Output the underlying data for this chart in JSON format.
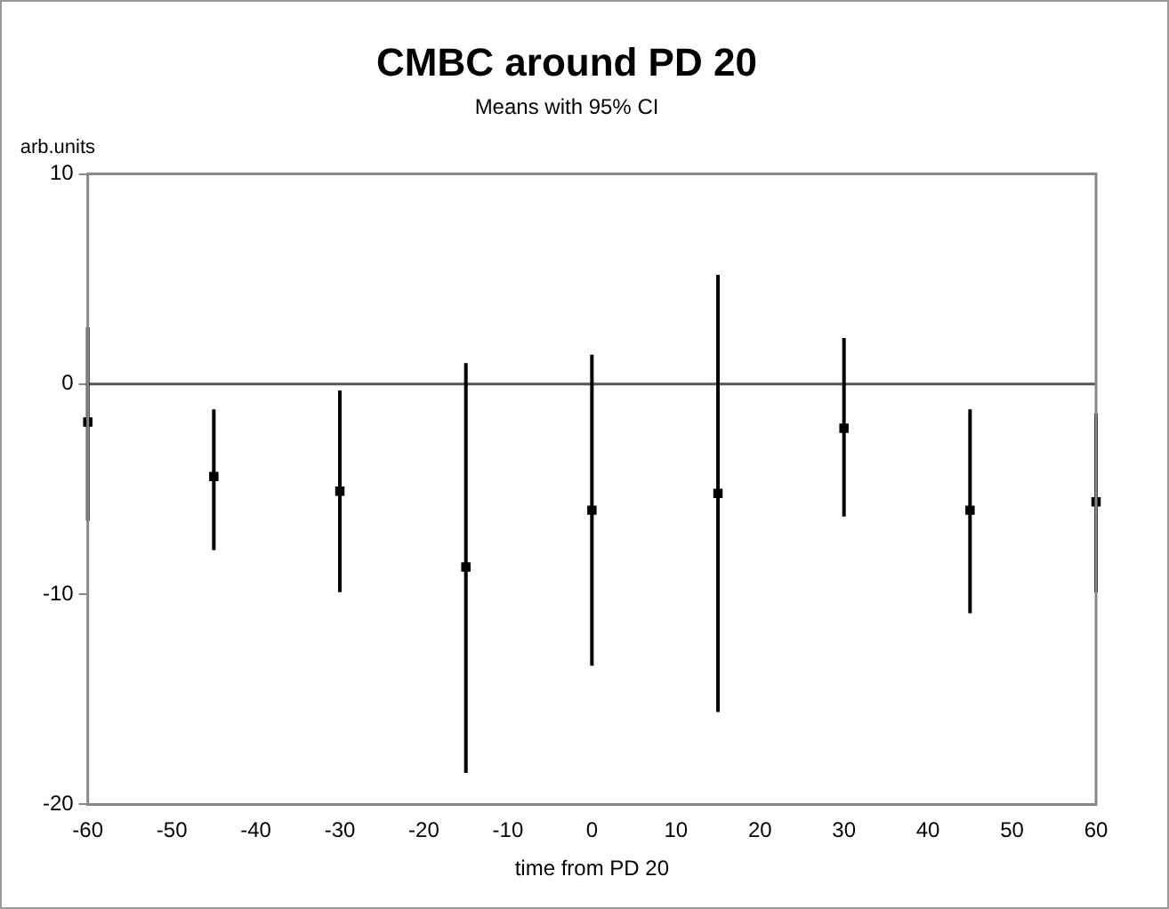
{
  "chart_data": {
    "type": "scatter",
    "title": "CMBC around PD 20",
    "subtitle": "Means with 95% CI",
    "xlabel": "time from PD 20",
    "ylabel": "arb.units",
    "x": [
      -60,
      -45,
      -30,
      -15,
      0,
      15,
      30,
      45,
      60
    ],
    "values": [
      -1.8,
      -4.4,
      -5.1,
      -8.7,
      -6.0,
      -5.2,
      -2.1,
      -6.0,
      -5.6
    ],
    "color": "#000000",
    "errors": [
      [
        -6.5,
        2.7
      ],
      [
        -7.9,
        -1.2
      ],
      [
        -9.9,
        -0.3
      ],
      [
        -18.5,
        1.0
      ],
      [
        -13.4,
        1.4
      ],
      [
        -15.6,
        5.2
      ],
      [
        -6.3,
        2.2
      ],
      [
        -10.9,
        -1.2
      ],
      [
        -9.9,
        -1.4
      ]
    ],
    "xlim": [
      -60,
      60
    ],
    "xticks": [
      -60,
      -50,
      -40,
      -30,
      -20,
      -10,
      0,
      10,
      20,
      30,
      40,
      50,
      60
    ],
    "ylim": [
      -20,
      10
    ],
    "yticks": [
      -20,
      -10,
      0,
      10
    ],
    "ref_lines": [
      {
        "axis": "y",
        "value": 0,
        "color": "#555555"
      }
    ],
    "grid": false,
    "legend": false
  }
}
